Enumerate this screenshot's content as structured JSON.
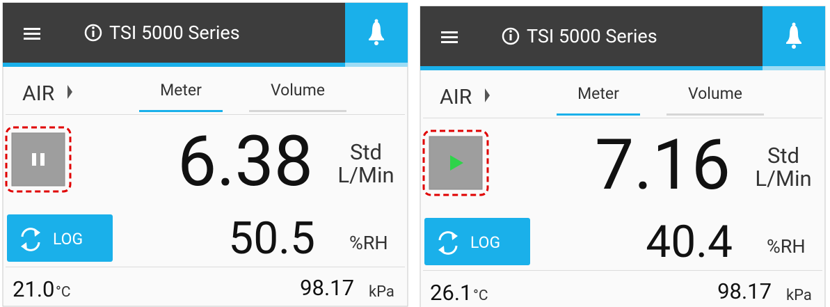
{
  "screens": [
    {
      "title": "TSI 5000 Series",
      "mode": "AIR",
      "tabs": [
        "Meter",
        "Volume"
      ],
      "control": "pause",
      "flow": {
        "value": "6.38",
        "unit": [
          "Std",
          "L/Min"
        ]
      },
      "humidity": {
        "value": "50.5",
        "unit": "%RH"
      },
      "button": "LOG",
      "temperature": {
        "value": "21.0",
        "unit": "°C"
      },
      "pressure": {
        "value": "98.17",
        "unit": "kPa"
      }
    },
    {
      "title": "TSI 5000 Series",
      "mode": "AIR",
      "tabs": [
        "Meter",
        "Volume"
      ],
      "control": "play",
      "flow": {
        "value": "7.16",
        "unit": [
          "Std",
          "L/Min"
        ]
      },
      "humidity": {
        "value": "40.4",
        "unit": "%RH"
      },
      "button": "LOG",
      "temperature": {
        "value": "26.1",
        "unit": "°C"
      },
      "pressure": {
        "value": "98.17",
        "unit": "kPa"
      }
    }
  ]
}
